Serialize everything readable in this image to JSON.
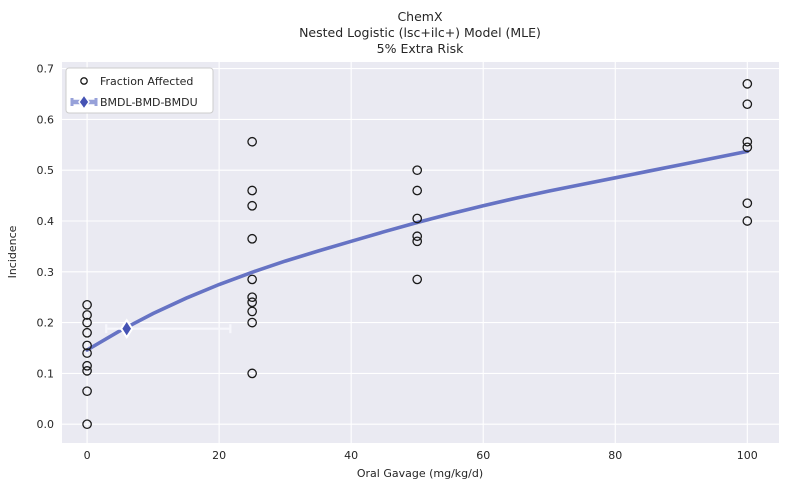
{
  "title": {
    "line1": "ChemX",
    "line2": "Nested Logistic (lsc+ilc+) Model (MLE)",
    "line3": "5% Extra Risk"
  },
  "axes": {
    "xlabel": "Oral Gavage (mg/kg/d)",
    "ylabel": "Incidence",
    "x_ticks": [
      0,
      20,
      40,
      60,
      80,
      100
    ],
    "y_ticks": [
      "0.0",
      "0.1",
      "0.2",
      "0.3",
      "0.4",
      "0.5",
      "0.6",
      "0.7"
    ],
    "xlim": [
      -3.8,
      104.8
    ],
    "ylim": [
      -0.037,
      0.713
    ],
    "grid": true
  },
  "legend": {
    "position": "upper-left",
    "items": [
      {
        "label": "Fraction Affected",
        "marker": "open-circle"
      },
      {
        "label": "BMDL-BMD-BMDU",
        "marker": "errorbar-diamond"
      }
    ]
  },
  "colors": {
    "plot_background": "#eaeaf2",
    "gridline": "#ffffff",
    "fit_curve": "#6673c4",
    "bmd_diamond": "#4553b4",
    "bmd_errorbar": "#f7f7fc",
    "legend_errorbar": "#97a1d9",
    "marker_edge": "#1a1a1a",
    "text": "#262626",
    "legend_border": "#cccccc",
    "legend_background": "#ffffff"
  },
  "chart_data": {
    "type": "scatter",
    "title": "ChemX — Nested Logistic (lsc+ilc+) Model (MLE) — 5% Extra Risk",
    "xlabel": "Oral Gavage (mg/kg/d)",
    "ylabel": "Incidence",
    "xlim": [
      -3.8,
      104.8
    ],
    "ylim": [
      -0.037,
      0.713
    ],
    "series": [
      {
        "name": "Fraction Affected",
        "marker": "open-circle",
        "groups": [
          {
            "dose": 0,
            "fractions": [
              0.0,
              0.065,
              0.105,
              0.115,
              0.14,
              0.155,
              0.18,
              0.2,
              0.215,
              0.235
            ]
          },
          {
            "dose": 25,
            "fractions": [
              0.1,
              0.2,
              0.222,
              0.24,
              0.25,
              0.285,
              0.365,
              0.43,
              0.46,
              0.556
            ]
          },
          {
            "dose": 50,
            "fractions": [
              0.285,
              0.36,
              0.37,
              0.405,
              0.46,
              0.5
            ]
          },
          {
            "dose": 100,
            "fractions": [
              0.4,
              0.435,
              0.545,
              0.556,
              0.63,
              0.67
            ]
          }
        ]
      }
    ],
    "fit_curve": {
      "name": "Nested Logistic MLE fit",
      "x": [
        0,
        5,
        10,
        15,
        20,
        25,
        30,
        35,
        40,
        45,
        50,
        55,
        60,
        65,
        70,
        75,
        80,
        85,
        90,
        95,
        100
      ],
      "y": [
        0.146,
        0.184,
        0.218,
        0.248,
        0.275,
        0.299,
        0.321,
        0.341,
        0.36,
        0.379,
        0.397,
        0.414,
        0.43,
        0.445,
        0.459,
        0.472,
        0.485,
        0.498,
        0.511,
        0.524,
        0.537
      ]
    },
    "bmd": {
      "bmdl": 2.9,
      "bmd": 6.0,
      "bmdu": 21.7,
      "bmr_response": 0.188
    }
  }
}
